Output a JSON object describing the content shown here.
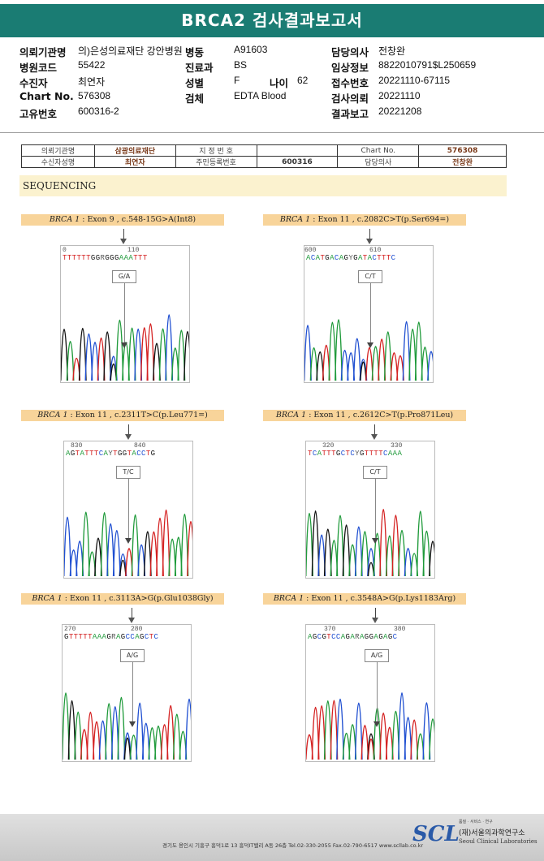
{
  "header": {
    "title": "BRCA2 검사결과보고서"
  },
  "info": {
    "institution_label": "의뢰기관명",
    "institution": "의)은성의료재단 강안병원",
    "ward_label": "병동",
    "ward": "A91603",
    "doctor_label": "담당의사",
    "doctor": "전창완",
    "hospital_code_label": "병원코드",
    "hospital_code": "55422",
    "dept_label": "진료과",
    "dept": "BS",
    "clinical_label": "임상정보",
    "clinical": "8822010791$L250659",
    "patient_label": "수진자",
    "patient": "최연자",
    "sex_label": "성별",
    "sex": "F",
    "age_label": "나이",
    "age": "62",
    "receipt_label": "접수번호",
    "receipt": "20221110-67115",
    "chart_label": "Chart No.",
    "chart": "576308",
    "specimen_label": "검체",
    "specimen": "EDTA Blood",
    "request_label": "검사의뢰",
    "request": "20221110",
    "id_label": "고유번호",
    "id": "600316-2",
    "report_label": "결과보고",
    "report": "20221208"
  },
  "subtable": {
    "r1": [
      "의뢰기관명",
      "삼광의료재단",
      "지 정 번 호",
      "",
      "Chart No.",
      "576308"
    ],
    "r2": [
      "수신자성명",
      "최연자",
      "주민등록번호",
      "600316",
      "담당의사",
      "전창완"
    ]
  },
  "section": {
    "title": "SEQUENCING"
  },
  "panels": [
    {
      "gene": "BRCA 1",
      "desc": " : Exon 9 , c.548-15G>A(Int8)",
      "n1": "0",
      "n2": "110",
      "bases": "TTTTTTGGRGGGAAATTT",
      "mut": "G/A"
    },
    {
      "gene": "BRCA 1",
      "desc": " : Exon 11 , c.2082C>T(p.Ser694=)",
      "n1": "600",
      "n2": "610",
      "bases": "ACATGACAGYGATACTTTC",
      "mut": "C/T"
    },
    {
      "gene": "BRCA 1",
      "desc": " : Exon 11 , c.2311T>C(p.Leu771=)",
      "n1": "830",
      "n2": "840",
      "bases": "AGTATTTCAYTGGTACCTG",
      "mut": "T/C"
    },
    {
      "gene": "BRCA 1",
      "desc": " : Exon 11 , c.2612C>T(p.Pro871Leu)",
      "n1": "320",
      "n2": "330",
      "bases": "TCATTTGCTCYGTTTTCAAA",
      "mut": "C/T"
    },
    {
      "gene": "BRCA 1",
      "desc": " : Exon 11 , c.3113A>G(p.Glu1038Gly)",
      "n1": "270",
      "n2": "280",
      "bases": "GTTTTTAAAGRAGCCAGCTC",
      "mut": "A/G"
    },
    {
      "gene": "BRCA 1",
      "desc": " : Exon 11 , c.3548A>G(p.Lys1183Arg)",
      "n1": "370",
      "n2": "380",
      "bases": "AGCGTCCAGARAGGAGAGC",
      "mut": "A/G"
    }
  ],
  "footer": {
    "address": "경기도 용인시 기흥구 흥덕1로 13 흥덕IT밸리 A동 26층  Tel.02-330-2055  Fax.02-790-6517  www.scllab.co.kr",
    "logo": "SCL",
    "tagline": "품질 · 서비스 · 연구",
    "lab_name": "(재)서울의과학연구소",
    "lab_name_en": "Seoul Clinical Laboratories"
  },
  "colors": {
    "A": "#1f9a3a",
    "C": "#1f4fd1",
    "G": "#111111",
    "T": "#d42020",
    "banner": "#1a7c73"
  }
}
